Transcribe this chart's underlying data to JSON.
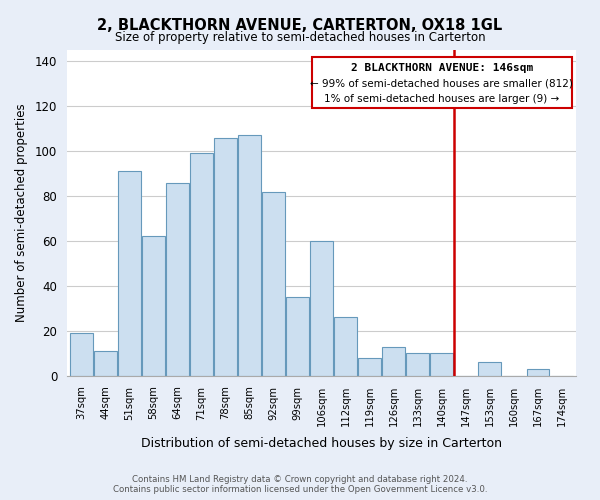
{
  "title": "2, BLACKTHORN AVENUE, CARTERTON, OX18 1GL",
  "subtitle": "Size of property relative to semi-detached houses in Carterton",
  "xlabel": "Distribution of semi-detached houses by size in Carterton",
  "ylabel": "Number of semi-detached properties",
  "footer_line1": "Contains HM Land Registry data © Crown copyright and database right 2024.",
  "footer_line2": "Contains public sector information licensed under the Open Government Licence v3.0.",
  "bar_labels": [
    "37sqm",
    "44sqm",
    "51sqm",
    "58sqm",
    "64sqm",
    "71sqm",
    "78sqm",
    "85sqm",
    "92sqm",
    "99sqm",
    "106sqm",
    "112sqm",
    "119sqm",
    "126sqm",
    "133sqm",
    "140sqm",
    "147sqm",
    "153sqm",
    "160sqm",
    "167sqm",
    "174sqm"
  ],
  "bar_values": [
    19,
    11,
    91,
    62,
    86,
    99,
    106,
    107,
    82,
    35,
    60,
    26,
    8,
    13,
    10,
    10,
    0,
    6,
    0,
    3,
    0
  ],
  "bar_color": "#ccdff0",
  "bar_edge_color": "#6699bb",
  "property_line_label": "2 BLACKTHORN AVENUE: 146sqm",
  "annotation_line2": "← 99% of semi-detached houses are smaller (812)",
  "annotation_line3": "1% of semi-detached houses are larger (9) →",
  "vline_color": "#cc0000",
  "ylim": [
    0,
    145
  ],
  "yticks": [
    0,
    20,
    40,
    60,
    80,
    100,
    120,
    140
  ],
  "background_color": "#e8eef8",
  "plot_bg_color": "#ffffff",
  "grid_color": "#cccccc"
}
